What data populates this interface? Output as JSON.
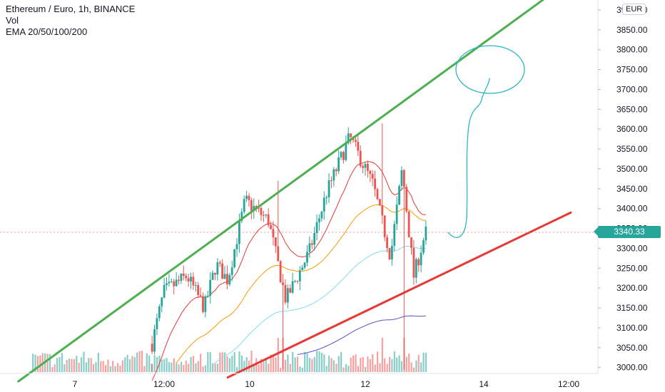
{
  "legend": {
    "symbol": "Ethereum / Euro, 1h, BINANCE",
    "vol": "Vol",
    "ema": "EMA 20/50/100/200"
  },
  "currency_button": "EUR",
  "last_price_label": "3340.33",
  "colors": {
    "up": "#26a69a",
    "down": "#ef5350",
    "resistance": "#4caf50",
    "support": "#e53935",
    "ema20": "#e53935",
    "ema50": "#ff9800",
    "ema100": "#80deea",
    "ema200": "#5c4ec9",
    "projection": "#29b6c6"
  },
  "chart_data": {
    "type": "candlestick",
    "symbol": "Ethereum / Euro",
    "interval": "1h",
    "exchange": "BINANCE",
    "ylim": [
      2985,
      3925
    ],
    "y_ticks": [
      3000,
      3050,
      3100,
      3150,
      3200,
      3250,
      3300,
      3350,
      3400,
      3450,
      3500,
      3550,
      3600,
      3650,
      3700,
      3750,
      3800,
      3850,
      3900
    ],
    "y_tick_labels": [
      "3000.00",
      "3050.00",
      "3100.00",
      "3150.00",
      "3200.00",
      "3250.00",
      "3300.00",
      "3350.00",
      "3400.00",
      "3450.00",
      "3500.00",
      "3550.00",
      "3600.00",
      "3650.00",
      "3700.00",
      "3750.00",
      "3800.00",
      "3850.00",
      "3900.00"
    ],
    "x_ticks": [
      "7",
      "12:00",
      "10",
      "12",
      "14",
      "12:00"
    ],
    "last_price": 3340.33,
    "close_path": [
      {
        "day": 8.8,
        "price": 3060
      },
      {
        "day": 9.0,
        "price": 3190
      },
      {
        "day": 9.4,
        "price": 3230
      },
      {
        "day": 9.7,
        "price": 3150
      },
      {
        "day": 9.9,
        "price": 3260
      },
      {
        "day": 10.1,
        "price": 3220
      },
      {
        "day": 10.4,
        "price": 3420
      },
      {
        "day": 10.8,
        "price": 3370
      },
      {
        "day": 11.1,
        "price": 3170
      },
      {
        "day": 11.5,
        "price": 3290
      },
      {
        "day": 11.8,
        "price": 3440
      },
      {
        "day": 12.2,
        "price": 3580
      },
      {
        "day": 12.6,
        "price": 3460
      },
      {
        "day": 12.9,
        "price": 3280
      },
      {
        "day": 13.1,
        "price": 3500
      },
      {
        "day": 13.3,
        "price": 3230
      },
      {
        "day": 13.5,
        "price": 3340
      }
    ],
    "ema_end_values": {
      "EMA20": 3385,
      "EMA50": 3370,
      "EMA100": 3300,
      "EMA200": 3130
    },
    "trendlines": [
      {
        "role": "resistance",
        "from": {
          "day": 6.5,
          "price": 2965
        },
        "to": {
          "day": 15.8,
          "price": 3955
        }
      },
      {
        "role": "support",
        "from": {
          "day": 10.1,
          "price": 2975
        },
        "to": {
          "day": 16.0,
          "price": 3390
        }
      }
    ],
    "target_zone": {
      "price_low": 3690,
      "price_high": 3810
    }
  }
}
